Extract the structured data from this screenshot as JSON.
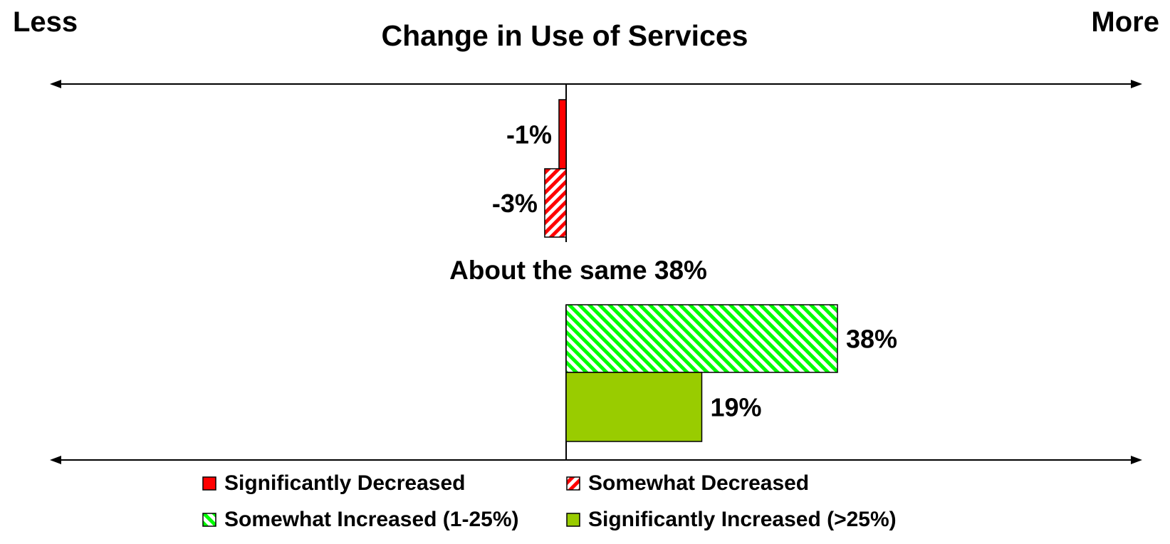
{
  "chart_data": {
    "type": "bar",
    "orientation": "horizontal",
    "title": "Change in Use of Services",
    "left_label": "Less",
    "right_label": "More",
    "middle_note": "About the same 38%",
    "xlim": [
      -50,
      100
    ],
    "bars": [
      {
        "category": "Significantly Decreased",
        "value": -1,
        "label": "-1%",
        "color": "#ff0000",
        "pattern": "solid"
      },
      {
        "category": "Somewhat Decreased",
        "value": -3,
        "label": "-3%",
        "color": "#ff0000",
        "pattern": "hatch-right"
      },
      {
        "category": "Somewhat Increased (1-25%)",
        "value": 38,
        "label": "38%",
        "color": "#00ff00",
        "pattern": "hatch-left"
      },
      {
        "category": "Significantly Increased (>25%)",
        "value": 19,
        "label": "19%",
        "color": "#99cc00",
        "pattern": "solid"
      }
    ],
    "legend": [
      {
        "label": "Significantly Decreased",
        "color": "#ff0000",
        "pattern": "solid"
      },
      {
        "label": "Somewhat Decreased",
        "color": "#ff0000",
        "pattern": "hatch-right"
      },
      {
        "label": "Somewhat Increased (1-25%)",
        "color": "#00ff00",
        "pattern": "hatch-left"
      },
      {
        "label": "Significantly Increased (>25%)",
        "color": "#99cc00",
        "pattern": "solid"
      }
    ]
  }
}
